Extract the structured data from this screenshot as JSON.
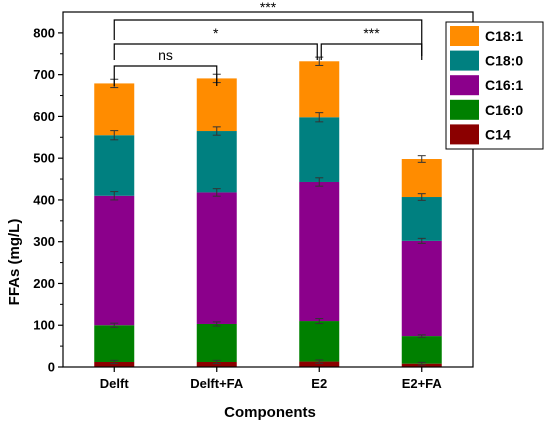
{
  "chart_data": {
    "type": "bar",
    "stacked": true,
    "xlabel": "Components",
    "ylabel": "FFAs (mg/L)",
    "ylim": [
      0,
      850
    ],
    "yticks": [
      0,
      100,
      200,
      300,
      400,
      500,
      600,
      700,
      800
    ],
    "categories": [
      "Delft",
      "Delft+FA",
      "E2",
      "E2+FA"
    ],
    "legend_position": "top-right",
    "series": [
      {
        "name": "C14",
        "color": "#8b0000",
        "values": [
          12,
          12,
          13,
          8
        ]
      },
      {
        "name": "C16:0",
        "color": "#008000",
        "values": [
          88,
          91,
          97,
          66
        ]
      },
      {
        "name": "C16:1",
        "color": "#8b008b",
        "values": [
          310,
          315,
          333,
          228
        ]
      },
      {
        "name": "C18:0",
        "color": "#008080",
        "values": [
          145,
          147,
          155,
          105
        ]
      },
      {
        "name": "C18:1",
        "color": "#ff8c00",
        "values": [
          124,
          126,
          134,
          91
        ]
      }
    ],
    "error_bars": [
      [
        4,
        4,
        4,
        3
      ],
      [
        5,
        5,
        6,
        3
      ],
      [
        10,
        9,
        10,
        6
      ],
      [
        11,
        10,
        11,
        8
      ],
      [
        10,
        10,
        10,
        8
      ]
    ],
    "significance": [
      {
        "from": "Delft",
        "to": "E2+FA",
        "label": "***"
      },
      {
        "from": "Delft",
        "to": "E2",
        "label": "*"
      },
      {
        "from": "Delft",
        "to": "Delft+FA",
        "label": "ns"
      },
      {
        "from": "E2",
        "to": "E2+FA",
        "label": "***"
      }
    ]
  }
}
